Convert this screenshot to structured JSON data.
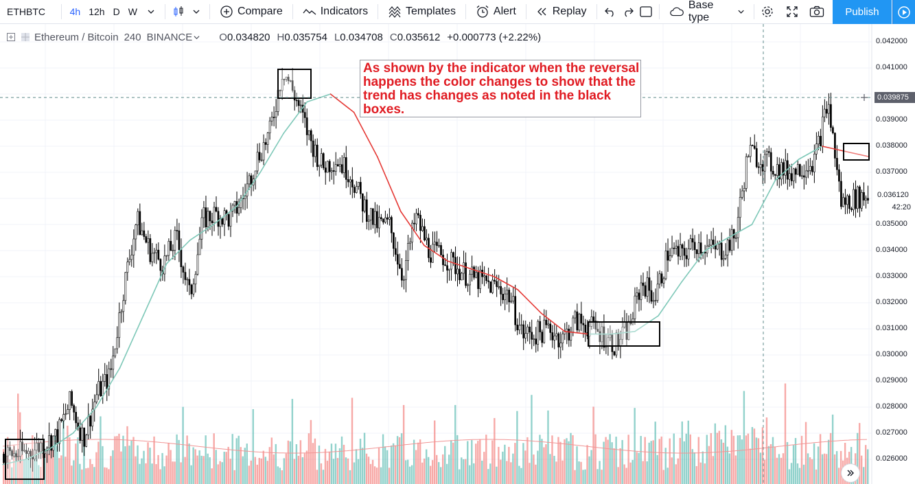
{
  "toolbar": {
    "symbol": "ETHBTC",
    "intervals": [
      {
        "label": "4h",
        "active": true
      },
      {
        "label": "12h",
        "active": false
      },
      {
        "label": "D",
        "active": false
      },
      {
        "label": "W",
        "active": false
      }
    ],
    "compare_label": "Compare",
    "indicators_label": "Indicators",
    "templates_label": "Templates",
    "alert_label": "Alert",
    "replay_label": "Replay",
    "base_type_label": "Base type",
    "publish_label": "Publish"
  },
  "legend": {
    "name": "Ethereum / Bitcoin",
    "interval": "240",
    "exchange": "BINANCE",
    "open_key": "O",
    "open": "0.034820",
    "high_key": "H",
    "high": "0.035754",
    "low_key": "L",
    "low": "0.034708",
    "close_key": "C",
    "close": "0.035612",
    "change": "+0.000773 (+2.22%)"
  },
  "annotation": {
    "text": "As shown by the indicator when the reversal happens the color changes to show that the trend has changes as noted in the black boxes."
  },
  "price_axis": {
    "ticks": [
      "0.042000",
      "0.041000",
      "0.039000",
      "0.038000",
      "0.037000",
      "0.035000",
      "0.034000",
      "0.033000",
      "0.032000",
      "0.031000",
      "0.030000",
      "0.029000",
      "0.028000",
      "0.027000",
      "0.026000"
    ],
    "crosshair_price": "0.039875",
    "last_price": "0.036120",
    "countdown": "42:20"
  },
  "colors": {
    "up": "#26a69a",
    "down": "#ef5350",
    "ma_bull": "#7ec8b8",
    "ma_bear": "#e53935",
    "candle": "#000000",
    "annotation_text": "#e01b22",
    "accent": "#2962ff",
    "publish": "#2196f3"
  },
  "chart_data": {
    "type": "candlestick",
    "price_range": [
      0.0255,
      0.0423
    ],
    "grid": true,
    "series": [
      {
        "name": "",
        "values": [
          0.0262,
          0.0262,
          0.0263,
          0.0266,
          0.0269,
          0.0282,
          0.0268,
          0.0285,
          0.0292,
          0.0325,
          0.0352,
          0.034,
          0.0335,
          0.0345,
          0.0322,
          0.0352,
          0.0354,
          0.0352,
          0.036,
          0.0375,
          0.0385,
          0.041,
          0.0398,
          0.0383,
          0.0372,
          0.0375,
          0.037,
          0.0358,
          0.035,
          0.035,
          0.033,
          0.0353,
          0.034,
          0.0338,
          0.0334,
          0.033,
          0.0328,
          0.0326,
          0.0323,
          0.0308,
          0.0308,
          0.031,
          0.0306,
          0.0313,
          0.0311,
          0.0308,
          0.0304,
          0.031,
          0.0328,
          0.0322,
          0.034,
          0.0338,
          0.0343,
          0.0341,
          0.034,
          0.0345,
          0.0378,
          0.0375,
          0.0372,
          0.037,
          0.0372,
          0.0375,
          0.0397,
          0.0358,
          0.036,
          0.0361
        ]
      }
    ],
    "moving_average": [
      0.0258,
      0.026,
      0.0264,
      0.027,
      0.028,
      0.0295,
      0.0315,
      0.0335,
      0.0344,
      0.035,
      0.0357,
      0.037,
      0.0385,
      0.0397,
      0.04,
      0.0393,
      0.0376,
      0.0355,
      0.0342,
      0.0336,
      0.0333,
      0.033,
      0.0325,
      0.0316,
      0.0309,
      0.0308,
      0.0308,
      0.0309,
      0.0315,
      0.0328,
      0.034,
      0.0345,
      0.035,
      0.0367,
      0.0375,
      0.038,
      0.0378,
      0.0376
    ]
  }
}
